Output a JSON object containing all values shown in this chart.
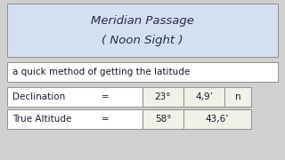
{
  "background_color": "#d0d0d0",
  "title_box_bg": "#d4e0f0",
  "title_line1": "Meridian Passage",
  "title_line2": "( Noon Sight )",
  "subtitle": "a quick method of getting the latitude",
  "row1_label": "Declination",
  "row1_eq": "=",
  "row1_deg": "23°",
  "row1_min": "4,9’",
  "row1_extra": "n",
  "row2_label": "True Altitude",
  "row2_eq": "=",
  "row2_deg": "58°",
  "row2_min": "43,6’",
  "cell_bg": "#eef2e8",
  "white_bg": "#ffffff",
  "border_color": "#909090",
  "text_color": "#1a1a2e",
  "title_text_color": "#2a2a4a"
}
